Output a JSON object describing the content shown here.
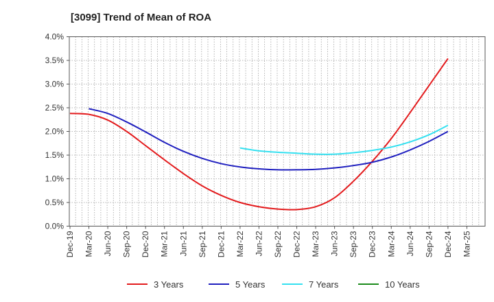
{
  "chart_data": {
    "type": "line",
    "title": "[3099]  Trend of Mean of ROA",
    "xlabel": "",
    "ylabel": "",
    "x_ticks": [
      "Dec-19",
      "Mar-20",
      "Jun-20",
      "Sep-20",
      "Dec-20",
      "Mar-21",
      "Jun-21",
      "Sep-21",
      "Dec-21",
      "Mar-22",
      "Jun-22",
      "Sep-22",
      "Dec-22",
      "Mar-23",
      "Jun-23",
      "Sep-23",
      "Dec-23",
      "Mar-24",
      "Jun-24",
      "Sep-24",
      "Dec-24",
      "Mar-25"
    ],
    "y_ticks": [
      "0.0%",
      "0.5%",
      "1.0%",
      "1.5%",
      "2.0%",
      "2.5%",
      "3.0%",
      "3.5%",
      "4.0%"
    ],
    "ylim": [
      0,
      4.0
    ],
    "grid": true,
    "legend_position": "bottom",
    "series": [
      {
        "name": "3 Years",
        "color": "#e31a1c",
        "x": [
          "Dec-19",
          "Mar-20",
          "Jun-20",
          "Sep-20",
          "Dec-20",
          "Mar-21",
          "Jun-21",
          "Sep-21",
          "Dec-21",
          "Mar-22",
          "Jun-22",
          "Sep-22",
          "Dec-22",
          "Mar-23",
          "Jun-23",
          "Sep-23",
          "Dec-23",
          "Mar-24",
          "Jun-24",
          "Sep-24",
          "Dec-24"
        ],
        "values": [
          2.38,
          2.36,
          2.24,
          2.0,
          1.7,
          1.4,
          1.11,
          0.85,
          0.65,
          0.5,
          0.41,
          0.36,
          0.35,
          0.41,
          0.6,
          0.95,
          1.37,
          1.85,
          2.4,
          2.97,
          3.54
        ]
      },
      {
        "name": "5 Years",
        "color": "#1f1fbf",
        "x": [
          "Mar-20",
          "Jun-20",
          "Sep-20",
          "Dec-20",
          "Mar-21",
          "Jun-21",
          "Sep-21",
          "Dec-21",
          "Mar-22",
          "Jun-22",
          "Sep-22",
          "Dec-22",
          "Mar-23",
          "Jun-23",
          "Sep-23",
          "Dec-23",
          "Mar-24",
          "Jun-24",
          "Sep-24",
          "Dec-24"
        ],
        "values": [
          2.48,
          2.38,
          2.2,
          1.99,
          1.77,
          1.58,
          1.43,
          1.32,
          1.25,
          1.21,
          1.19,
          1.19,
          1.2,
          1.23,
          1.28,
          1.35,
          1.46,
          1.61,
          1.79,
          2.0
        ]
      },
      {
        "name": "7 Years",
        "color": "#33e0f0",
        "x": [
          "Mar-22",
          "Jun-22",
          "Sep-22",
          "Dec-22",
          "Mar-23",
          "Jun-23",
          "Sep-23",
          "Dec-23",
          "Mar-24",
          "Jun-24",
          "Sep-24",
          "Dec-24"
        ],
        "values": [
          1.65,
          1.59,
          1.56,
          1.54,
          1.52,
          1.52,
          1.55,
          1.6,
          1.67,
          1.78,
          1.93,
          2.13
        ]
      },
      {
        "name": "10 Years",
        "color": "#1a8a1a",
        "x": [],
        "values": []
      }
    ]
  }
}
